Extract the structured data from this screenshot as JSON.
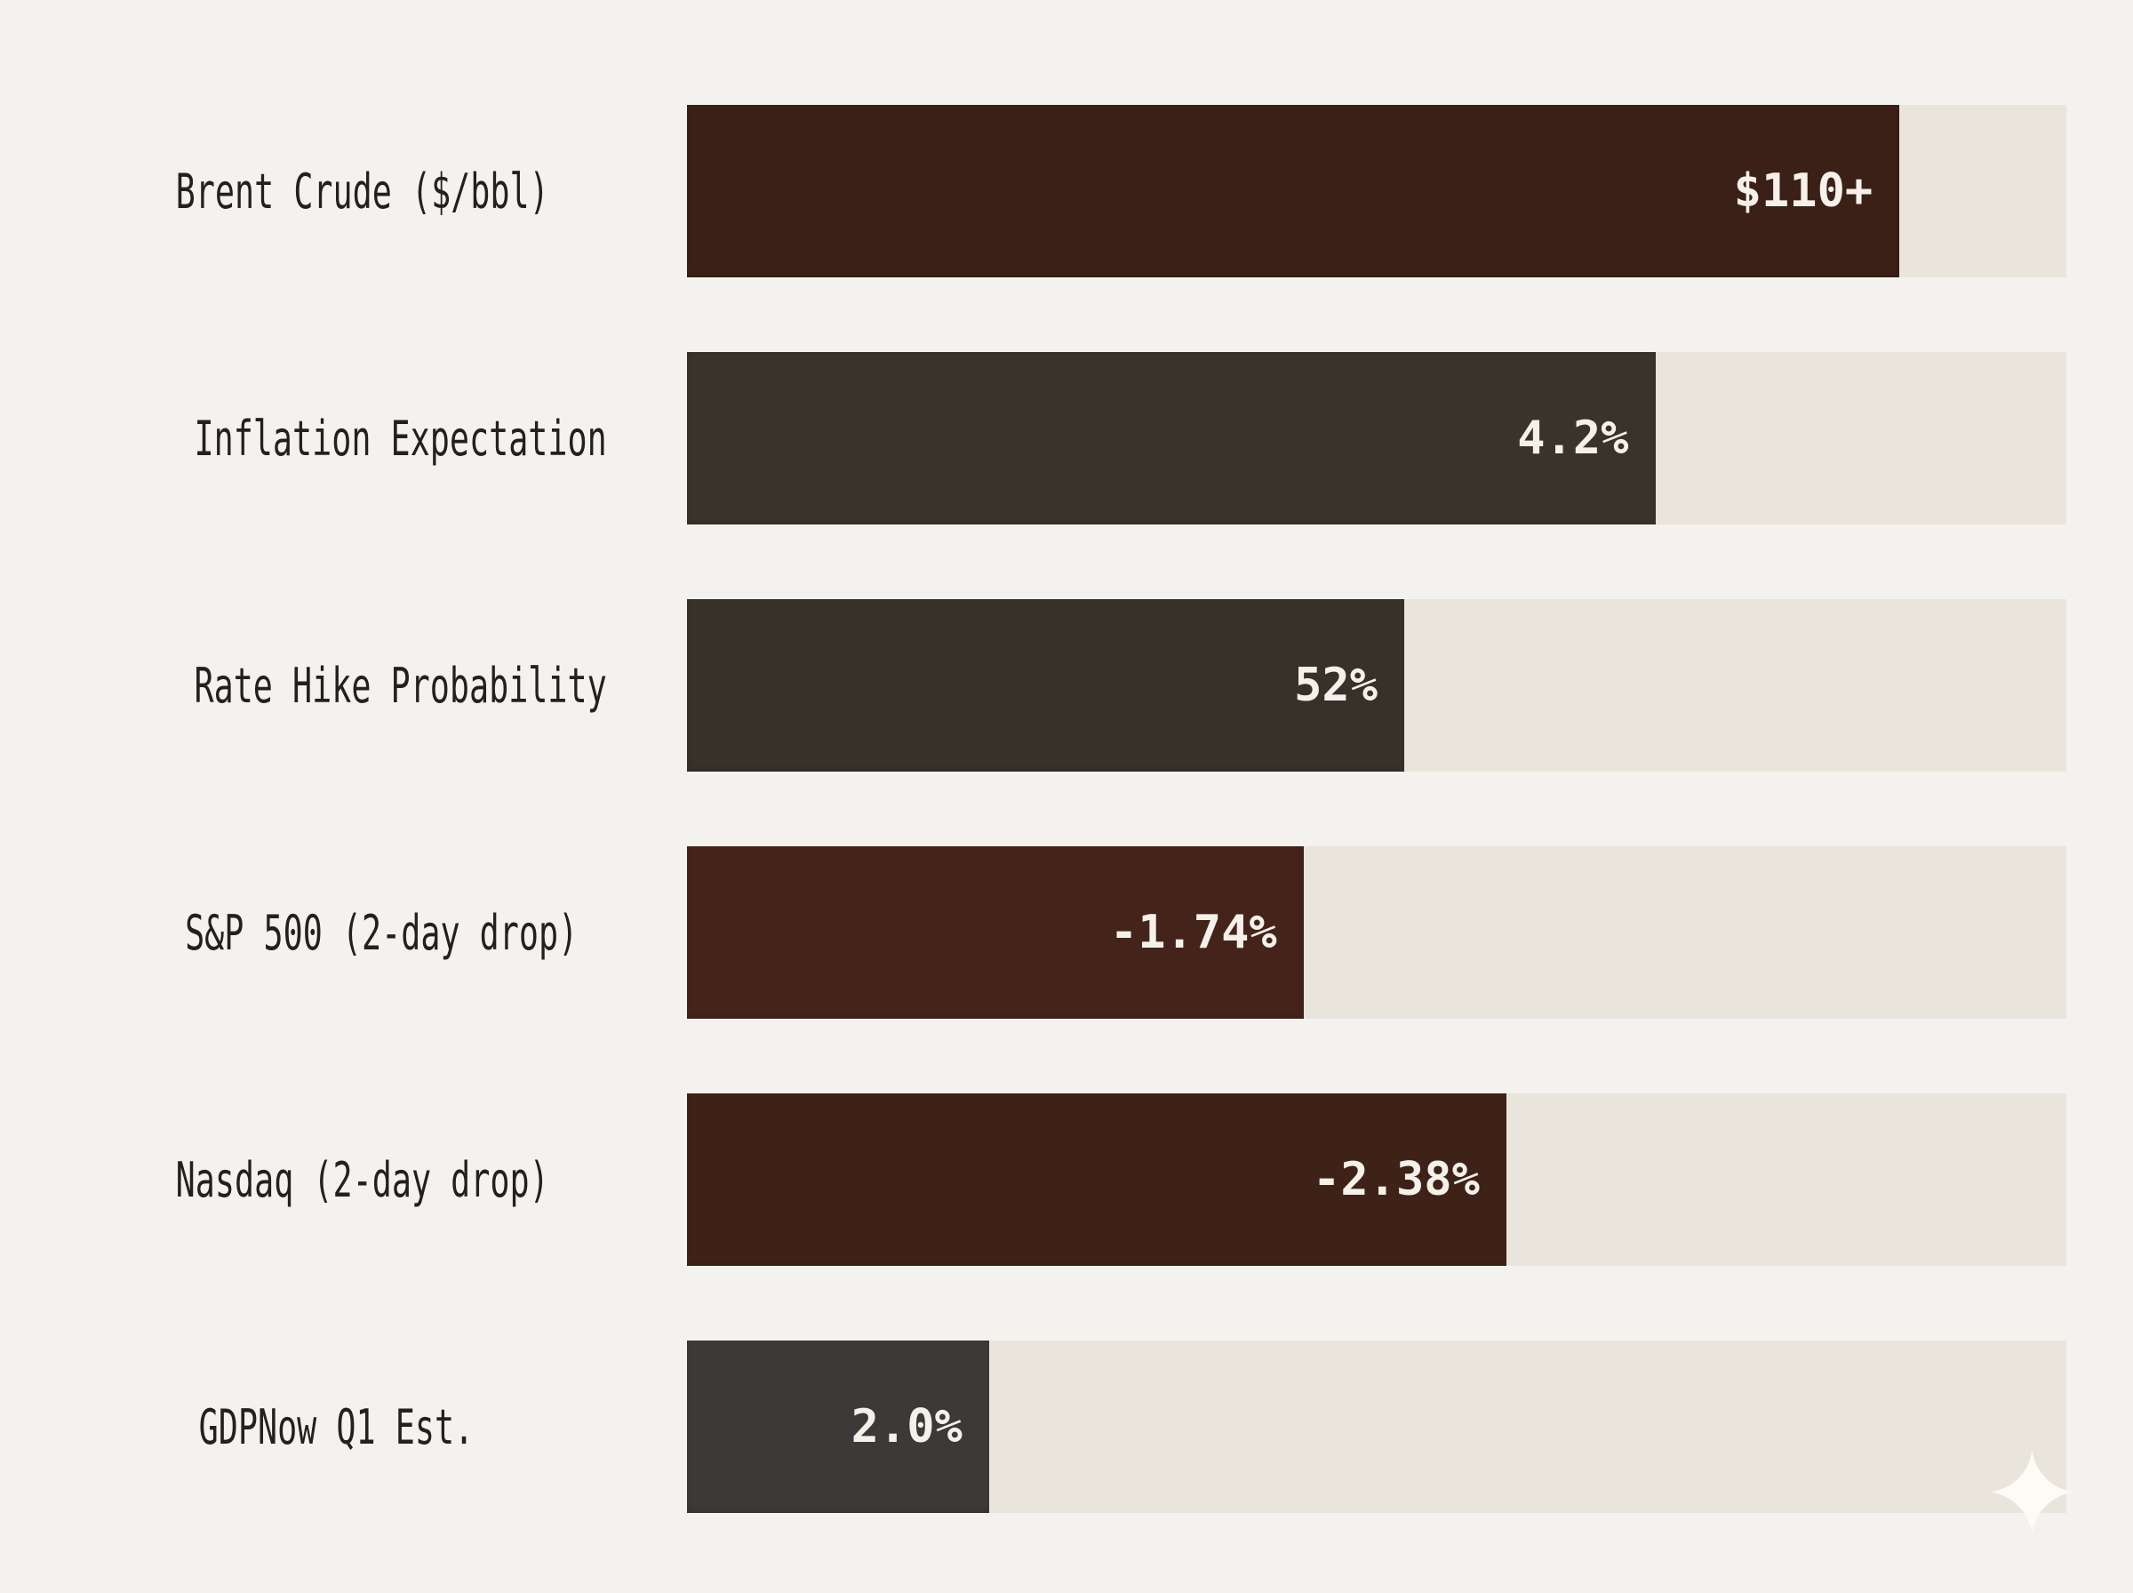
{
  "chart_data": {
    "type": "bar",
    "orientation": "horizontal",
    "title": "",
    "xlabel": "",
    "ylabel": "",
    "axis_visible": false,
    "grid": false,
    "legend": "none",
    "track_color": "#e9e5dc",
    "background_color": "#f4f2ee",
    "label_color": "#25201c",
    "value_color": "#f5f1ea",
    "categories": [
      "Brent Crude ($/bbl)",
      "Inflation Expectation",
      "Rate Hike Probability",
      "S&P 500 (2-day drop)",
      "Nasdaq (2-day drop)",
      "GDPNow Q1 Est."
    ],
    "values": [
      110,
      4.2,
      52,
      -1.74,
      -2.38,
      2.0
    ],
    "rows": [
      {
        "label": "Brent Crude ($/bbl)",
        "value_label": "$110+",
        "value": 110,
        "percent": 87.9,
        "color": "#3b2017"
      },
      {
        "label": "Inflation Expectation",
        "value_label": "4.2%",
        "value": 4.2,
        "percent": 70.2,
        "color": "#38332b"
      },
      {
        "label": "Rate Hike Probability",
        "value_label": "52%",
        "value": 52,
        "percent": 52.0,
        "color": "#37312a"
      },
      {
        "label": "S&P 500 (2-day drop)",
        "value_label": "-1.74%",
        "value": -1.74,
        "percent": 44.7,
        "color": "#44241a"
      },
      {
        "label": "Nasdaq (2-day drop)",
        "value_label": "-2.38%",
        "value": -2.38,
        "percent": 59.4,
        "color": "#3f2217"
      },
      {
        "label": "GDPNow Q1 Est.",
        "value_label": "2.0%",
        "value": 2.0,
        "percent": 21.9,
        "color": "#3b3a38"
      }
    ],
    "icons": {
      "bottom_right": "sparkle-icon",
      "sparkle_color": "#fcfbf6"
    }
  }
}
